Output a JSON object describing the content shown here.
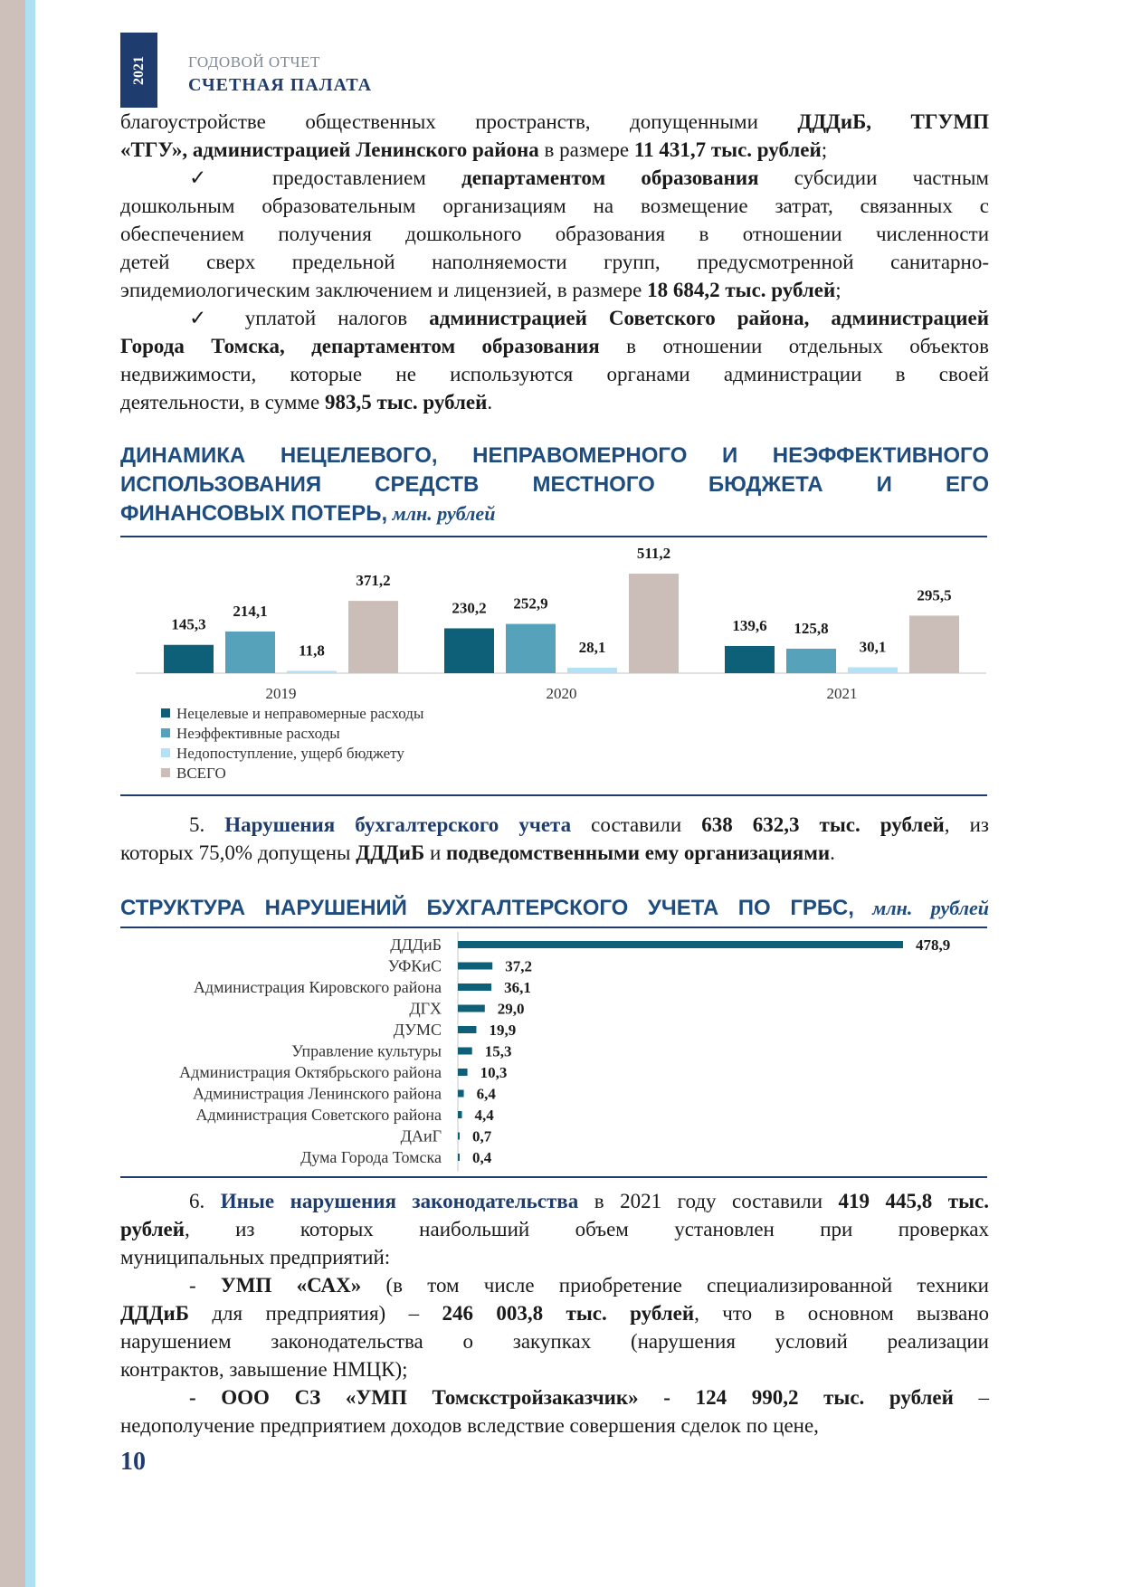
{
  "header": {
    "year": "2021",
    "line1": "ГОДОВОЙ ОТЧЕТ",
    "line2": "СЧЕТНАЯ ПАЛАТА"
  },
  "para1": {
    "t1": "благоустройстве общественных пространств, допущенными ",
    "b1": "ДДДиБ, ТГУМП",
    "b2": "«ТГУ», администрацией Ленинского района",
    "t2": " в размере ",
    "b3": "11 431,7 тыс. рублей",
    "t3": ";"
  },
  "para2": {
    "check": "✓",
    "t1": " предоставлением ",
    "b1": "департаментом образования",
    "t2": " субсидии частным",
    "l2": "дошкольным образовательным организациям на возмещение затрат, связанных с",
    "l3": "обеспечением получения дошкольного образования в отношении численности",
    "l4": "детей сверх предельной наполняемости групп, предусмотренной санитарно-",
    "l5": "эпидемиологическим заключением и лицензией, в размере ",
    "b2": "18 684,2 тыс. рублей",
    "t3": ";"
  },
  "para3": {
    "check": "✓",
    "t1": " уплатой налогов ",
    "b1": "администрацией Советского района, администрацией",
    "b2": "Города Томска, департаментом образования",
    "t2": " в отношении отдельных объектов",
    "l3": "недвижимости, которые не используются органами администрации в своей",
    "l4": "деятельности, в сумме ",
    "b3": "983,5 тыс. рублей",
    "t3": "."
  },
  "heading1": {
    "l1": "ДИНАМИКА НЕЦЕЛЕВОГО, НЕПРАВОМЕРНОГО И НЕЭФФЕКТИВНОГО",
    "l2": "ИСПОЛЬЗОВАНИЯ СРЕДСТВ МЕСТНОГО БЮДЖЕТА И ЕГО",
    "l3": "ФИНАНСОВЫХ ПОТЕРЬ,",
    "unit": " млн. рублей"
  },
  "para5": {
    "num": "5. ",
    "b1": "Нарушения бухгалтерского учета",
    "t1": " составили ",
    "b2": "638 632,3 тыс. рублей",
    "t2": ", из",
    "l2a": "которых 75,0% допущены ",
    "b3": "ДДДиБ",
    "l2b": " и ",
    "b4": "подведомственными ему организациями",
    "l2c": "."
  },
  "heading2": {
    "l1": "СТРУКТУРА НАРУШЕНИЙ БУХГАЛТЕРСКОГО УЧЕТА ПО ГРБС,",
    "unit": " млн. рублей"
  },
  "para6": {
    "num": "6. ",
    "b1": "Иные нарушения законодательства",
    "t1": " в 2021 году составили ",
    "b2": "419 445,8 тыс.",
    "b3": "рублей",
    "t2": ", из которых наибольший объем установлен при проверках",
    "l3": "муниципальных предприятий:"
  },
  "para7": {
    "t1": "- ",
    "b1": "УМП «САХ»",
    "t2": " (в том числе приобретение специализированной техники",
    "b2": "ДДДиБ",
    "t3": " для предприятия) – ",
    "b3": "246 003,8 тыс. рублей",
    "t4": ", что в основном вызвано",
    "l3": "нарушением законодательства о закупках (нарушения условий реализации",
    "l4": "контрактов, завышение НМЦК);"
  },
  "para8": {
    "b1": "- ООО СЗ «УМП Томскстройзаказчик» - 124 990,2 тыс. рублей",
    "t1": " –",
    "l2": "недополучение предприятием доходов вследствие совершения сделок по цене,"
  },
  "page_number": "10",
  "chart_data": [
    {
      "type": "bar",
      "categories": [
        "2019",
        "2020",
        "2021"
      ],
      "series": [
        {
          "name": "Нецелевые и неправомерные расходы",
          "color": "#0e5f78",
          "values": [
            145.3,
            230.2,
            139.6
          ],
          "labels": [
            "145,3",
            "230,2",
            "139,6"
          ]
        },
        {
          "name": "Неэффективные расходы",
          "color": "#56a2bb",
          "values": [
            214.1,
            252.9,
            125.8
          ],
          "labels": [
            "214,1",
            "252,9",
            "125,8"
          ]
        },
        {
          "name": "Недопоступление, ущерб бюджету",
          "color": "#b5e1f4",
          "values": [
            11.8,
            28.1,
            30.1
          ],
          "labels": [
            "11,8",
            "28,1",
            "30,1"
          ]
        },
        {
          "name": "ВСЕГО",
          "color": "#cbbdb7",
          "values": [
            371.2,
            511.2,
            295.5
          ],
          "labels": [
            "371,2",
            "511,2",
            "295,5"
          ]
        }
      ],
      "ylim": [
        0,
        511.2
      ],
      "legend": "bottom-left",
      "grid": false
    },
    {
      "type": "bar",
      "orientation": "horizontal",
      "color": "#0e5f78",
      "categories": [
        "ДДДиБ",
        "УФКиС",
        "Администрация Кировского района",
        "ДГХ",
        "ДУМС",
        "Управление культуры",
        "Администрация Октябрьского района",
        "Администрация Ленинского района",
        "Администрация Советского района",
        "ДАиГ",
        "Дума Города Томска"
      ],
      "values": [
        478.9,
        37.2,
        36.1,
        29.0,
        19.9,
        15.3,
        10.3,
        6.4,
        4.4,
        0.7,
        0.4
      ],
      "labels": [
        "478,9",
        "37,2",
        "36,1",
        "29,0",
        "19,9",
        "15,3",
        "10,3",
        "6,4",
        "4,4",
        "0,7",
        "0,4"
      ],
      "xlim": [
        0,
        478.9
      ],
      "grid": false
    }
  ]
}
